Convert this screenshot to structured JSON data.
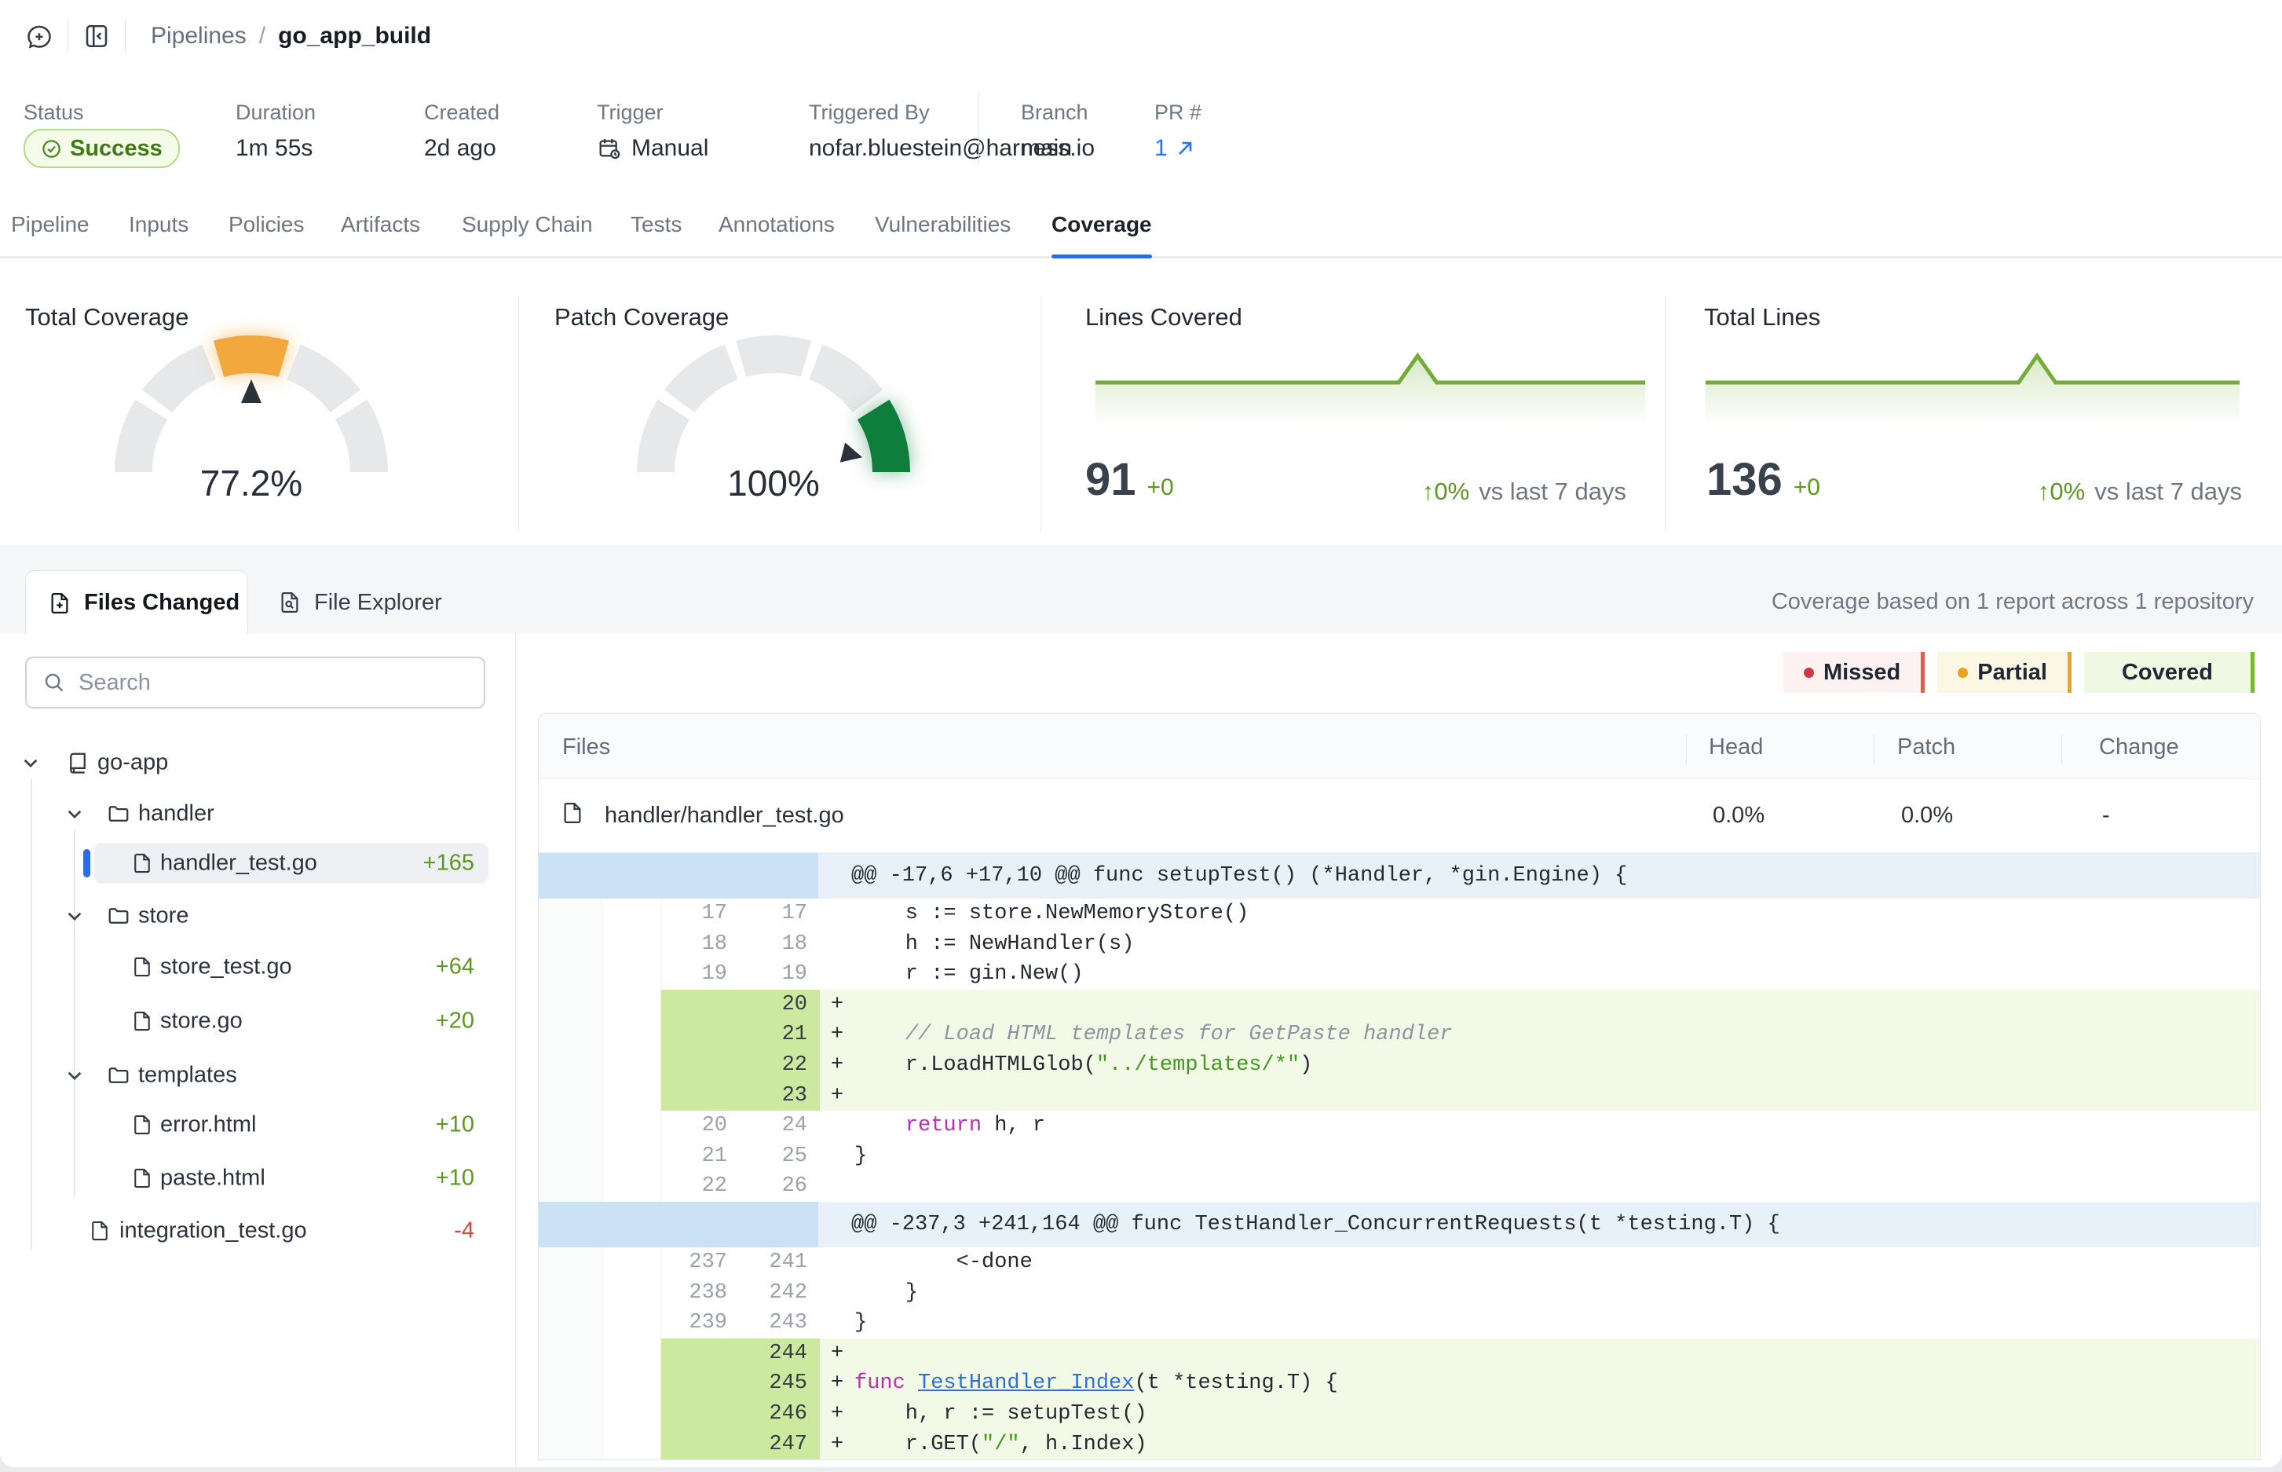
{
  "header": {
    "breadcrumb": {
      "parent": "Pipelines",
      "separator": "/",
      "current": "go_app_build"
    },
    "icons": [
      "chat-add-icon",
      "collapse-panel-icon"
    ]
  },
  "meta": {
    "status": {
      "label": "Status",
      "value": "Success"
    },
    "duration": {
      "label": "Duration",
      "value": "1m 55s"
    },
    "created": {
      "label": "Created",
      "value": "2d ago"
    },
    "trigger": {
      "label": "Trigger",
      "value": "Manual"
    },
    "triggered_by": {
      "label": "Triggered By",
      "value": "nofar.bluestein@harness.io"
    },
    "branch": {
      "label": "Branch",
      "value": "main"
    },
    "pr": {
      "label": "PR #",
      "value": "1"
    }
  },
  "tabs": {
    "active": "Coverage",
    "items": [
      {
        "label": "Pipeline"
      },
      {
        "label": "Inputs"
      },
      {
        "label": "Policies"
      },
      {
        "label": "Artifacts"
      },
      {
        "label": "Supply Chain"
      },
      {
        "label": "Tests"
      },
      {
        "label": "Annotations"
      },
      {
        "label": "Vulnerabilities"
      },
      {
        "label": "Coverage"
      }
    ]
  },
  "cards": {
    "gauge_pointer_color": "#2b323c",
    "total_coverage": {
      "title": "Total Coverage",
      "value": "77.2%",
      "segments": [
        "#e6e8ea",
        "#e6e8ea",
        "#f2a83c",
        "#e6e8ea",
        "#e6e8ea"
      ]
    },
    "patch_coverage": {
      "title": "Patch Coverage",
      "value": "100%",
      "segments": [
        "#e6e8ea",
        "#e6e8ea",
        "#e6e8ea",
        "#e6e8ea",
        "#0f7e3d"
      ]
    },
    "lines_covered": {
      "title": "Lines Covered",
      "value": "91",
      "delta": "+0",
      "trend_arrow": "↑",
      "trend_value": "0%",
      "trend_label": "vs last 7 days",
      "line_color": "#76ab3a",
      "values": [
        91,
        91,
        91,
        91,
        91,
        91,
        91,
        91,
        91,
        91,
        91,
        91,
        91,
        91,
        91,
        91,
        91,
        92,
        91,
        91,
        91,
        91,
        91,
        91,
        91,
        91,
        91,
        91,
        91,
        91
      ]
    },
    "total_lines": {
      "title": "Total Lines",
      "value": "136",
      "delta": "+0",
      "trend_arrow": "↑",
      "trend_value": "0%",
      "trend_label": "vs last 7 days",
      "line_color": "#76ab3a",
      "values": [
        136,
        136,
        136,
        136,
        136,
        136,
        136,
        136,
        136,
        136,
        136,
        136,
        136,
        136,
        136,
        136,
        136,
        136,
        137,
        136,
        136,
        136,
        136,
        136,
        136,
        136,
        136,
        136,
        136,
        136
      ]
    }
  },
  "chart_data": [
    {
      "type": "gauge",
      "title": "Total Coverage",
      "value": 77.2,
      "max": 100,
      "segment_count": 5,
      "active_segment": 3,
      "active_color": "#f2a83c"
    },
    {
      "type": "gauge",
      "title": "Patch Coverage",
      "value": 100,
      "max": 100,
      "segment_count": 5,
      "active_segment": 5,
      "active_color": "#0f7e3d"
    },
    {
      "type": "line",
      "title": "Lines Covered",
      "current": 91,
      "delta": 0,
      "trend_vs_last_7_days_pct": 0,
      "values": [
        91,
        91,
        91,
        91,
        91,
        91,
        91,
        91,
        91,
        91,
        91,
        91,
        91,
        91,
        91,
        91,
        91,
        92,
        91,
        91,
        91,
        91,
        91,
        91,
        91,
        91,
        91,
        91,
        91,
        91
      ]
    },
    {
      "type": "line",
      "title": "Total Lines",
      "current": 136,
      "delta": 0,
      "trend_vs_last_7_days_pct": 0,
      "values": [
        136,
        136,
        136,
        136,
        136,
        136,
        136,
        136,
        136,
        136,
        136,
        136,
        136,
        136,
        136,
        136,
        136,
        136,
        137,
        136,
        136,
        136,
        136,
        136,
        136,
        136,
        136,
        136,
        136,
        136
      ]
    }
  ],
  "workspace": {
    "tab_files_changed": "Files Changed",
    "tab_file_explorer": "File Explorer",
    "summary": "Coverage based on 1 report across 1 repository",
    "search_placeholder": "Search",
    "tree": {
      "repo": "go-app",
      "items": [
        {
          "name": "handler"
        },
        {
          "name": "handler_test.go",
          "delta": "+165"
        },
        {
          "name": "store"
        },
        {
          "name": "store_test.go",
          "delta": "+64"
        },
        {
          "name": "store.go",
          "delta": "+20"
        },
        {
          "name": "templates"
        },
        {
          "name": "error.html",
          "delta": "+10"
        },
        {
          "name": "paste.html",
          "delta": "+10"
        },
        {
          "name": "integration_test.go",
          "delta": "-4"
        }
      ]
    },
    "legend": {
      "missed": "Missed",
      "partial": "Partial",
      "covered": "Covered"
    },
    "table": {
      "col_files": "Files",
      "col_head": "Head",
      "col_patch": "Patch",
      "col_change": "Change",
      "row": {
        "file": "handler/handler_test.go",
        "head": "0.0%",
        "patch": "0.0%",
        "change": "-"
      }
    },
    "diff": {
      "hunk1": "@@ -17,6 +17,10 @@ func setupTest() (*Handler, *gin.Engine) {",
      "hunk2": "@@ -237,3 +241,164 @@ func TestHandler_ConcurrentRequests(t *testing.T) {",
      "lines": [
        {
          "old": "17",
          "new": "17",
          "p1": "    s := store.NewMemoryStore()"
        },
        {
          "old": "18",
          "new": "18",
          "p1": "    h := NewHandler(s)"
        },
        {
          "old": "19",
          "new": "19",
          "p1": "    r := gin.New()"
        },
        {
          "new": "20",
          "sign": "+",
          "p1": ""
        },
        {
          "new": "21",
          "sign": "+",
          "p1": "    ",
          "p2": "// Load HTML templates for GetPaste handler"
        },
        {
          "new": "22",
          "sign": "+",
          "p1": "    r.LoadHTMLGlob(",
          "p2": "\"../templates/*\"",
          "p3": ")"
        },
        {
          "new": "23",
          "sign": "+",
          "p1": ""
        },
        {
          "old": "20",
          "new": "24",
          "p1": "    ",
          "p2": "return",
          "p3": " h, r"
        },
        {
          "old": "21",
          "new": "25",
          "p1": "}"
        },
        {
          "old": "22",
          "new": "26",
          "p1": ""
        },
        {
          "old": "237",
          "new": "241",
          "p1": "        <-done"
        },
        {
          "old": "238",
          "new": "242",
          "p1": "    }"
        },
        {
          "old": "239",
          "new": "243",
          "p1": "}"
        },
        {
          "new": "244",
          "sign": "+",
          "p1": ""
        },
        {
          "new": "245",
          "sign": "+",
          "p2": "func ",
          "p3": "TestHandler_Index",
          "p4": "(t *testing.T) {"
        },
        {
          "new": "246",
          "sign": "+",
          "p1": "    h, r := setupTest()"
        },
        {
          "new": "247",
          "sign": "+",
          "p1": "    r.GET(",
          "p2": "\"/\"",
          "p3": ", h.Index)"
        }
      ]
    }
  },
  "colors": {
    "accent_blue": "#2e6be2",
    "success_green": "#3f7a14",
    "gauge_orange": "#f2a83c",
    "gauge_green": "#0f7e3d",
    "added_line_bg": "#f2f9e6",
    "added_gutter_bg": "#cde89f",
    "hunk_code_bg": "#e8f1fa",
    "hunk_gutter_bg": "#cbe2f6",
    "missed_red": "#cb3a42",
    "partial_orange": "#eba220",
    "covered_green": "#78b735",
    "delta_add_green": "#5b9a1f",
    "delta_remove_red": "#dd443e"
  }
}
